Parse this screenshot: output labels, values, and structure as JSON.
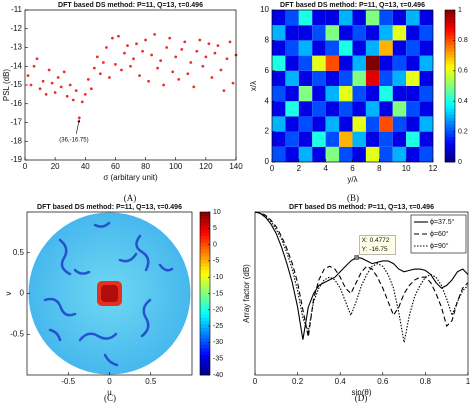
{
  "chart_data": [
    {
      "type": "scatter",
      "title": "DFT based DS method: P=11, Q=13, τ=0.496",
      "x_label": "σ (arbitary unit)",
      "y_label": "PSL (dB)",
      "color": "#e8312b",
      "x": [
        2,
        4,
        6,
        8,
        10,
        12,
        14,
        16,
        18,
        20,
        22,
        24,
        26,
        28,
        30,
        32,
        34,
        36,
        38,
        40,
        42,
        44,
        46,
        48,
        50,
        52,
        54,
        56,
        58,
        60,
        62,
        64,
        66,
        68,
        70,
        72,
        74,
        76,
        78,
        80,
        82,
        84,
        86,
        88,
        90,
        92,
        94,
        96,
        98,
        100,
        102,
        104,
        106,
        108,
        110,
        112,
        114,
        116,
        118,
        120,
        122,
        124,
        126,
        128,
        130,
        132,
        134,
        136,
        138,
        140
      ],
      "values": [
        -14.5,
        -15,
        -14,
        -13.6,
        -15.2,
        -14.8,
        -15.5,
        -14.2,
        -14.9,
        -15.4,
        -14.6,
        -15.1,
        -14.3,
        -15.6,
        -15.0,
        -15.8,
        -15.3,
        -16.75,
        -15.9,
        -15.5,
        -14.7,
        -15.2,
        -14.1,
        -13.5,
        -14.4,
        -13.8,
        -13.0,
        -14.6,
        -12.5,
        -13.9,
        -12.4,
        -14.2,
        -13.3,
        -12.9,
        -14.0,
        -13.6,
        -12.8,
        -14.5,
        -13.2,
        -12.6,
        -14.8,
        -13.4,
        -12.3,
        -14.1,
        -13.7,
        -15.0,
        -13.0,
        -12.5,
        -14.3,
        -13.5,
        -14.7,
        -13.1,
        -12.7,
        -14.4,
        -13.8,
        -15.1,
        -13.2,
        -12.6,
        -14.0,
        -13.5,
        -12.8,
        -14.6,
        -13.3,
        -12.9,
        -14.2,
        -15.3,
        -13.6,
        -12.7,
        -14.9,
        -13.4
      ],
      "xlim": [
        0,
        140
      ],
      "xticks": [
        0,
        20,
        40,
        60,
        80,
        100,
        120,
        140
      ],
      "ylim": [
        -19,
        -11
      ],
      "yticks": [
        -11,
        -12,
        -13,
        -14,
        -15,
        -16,
        -17,
        -18,
        -19
      ],
      "annotation": {
        "x": 36,
        "y": -16.75,
        "text": "(36,-16.75)"
      }
    },
    {
      "type": "heatmap",
      "title": "DFT based DS method: P=11, Q=13, τ=0.496",
      "x_label": "y/λ",
      "y_label": "x/λ",
      "values": [
        [
          0.2,
          0.1,
          0.3,
          0.1,
          0.5,
          0.2,
          0.1,
          0.6,
          0.2,
          0.3,
          0.1,
          0.2
        ],
        [
          0.1,
          0.2,
          0.1,
          0.4,
          0.2,
          0.7,
          0.3,
          0.1,
          0.2,
          0.1,
          0.4,
          0.1
        ],
        [
          0.3,
          0.1,
          0.2,
          0.1,
          0.3,
          0.1,
          0.6,
          0.2,
          0.8,
          0.2,
          0.1,
          0.3
        ],
        [
          0.1,
          0.4,
          0.1,
          0.2,
          0.1,
          0.2,
          0.1,
          0.3,
          0.1,
          0.5,
          0.2,
          0.1
        ],
        [
          0.2,
          0.1,
          0.5,
          0.1,
          0.3,
          0.6,
          0.2,
          0.1,
          0.4,
          0.1,
          0.1,
          0.2
        ],
        [
          0.1,
          0.3,
          0.1,
          0.2,
          0.1,
          0.2,
          0.5,
          0.9,
          0.2,
          0.3,
          0.6,
          0.1
        ],
        [
          0.4,
          0.1,
          0.2,
          0.6,
          0.8,
          0.1,
          0.3,
          1,
          0.1,
          0.2,
          0.1,
          0.3
        ],
        [
          0.1,
          0.2,
          0.3,
          0.1,
          0.2,
          0.4,
          0.1,
          0.3,
          0.7,
          0.1,
          0.2,
          0.1
        ],
        [
          0.3,
          0.1,
          0.1,
          0.2,
          0.5,
          0.1,
          0.2,
          0.1,
          0.3,
          0.6,
          0.1,
          0.2
        ],
        [
          0.1,
          0.2,
          0.4,
          0.1,
          0.1,
          0.3,
          0.1,
          0.5,
          0.2,
          0.1,
          0.3,
          0.1
        ]
      ],
      "xlim": [
        0,
        12
      ],
      "xticks": [
        0,
        2,
        4,
        6,
        8,
        10,
        12
      ],
      "ylim": [
        0,
        10
      ],
      "yticks": [
        0,
        2,
        4,
        6,
        8,
        10
      ],
      "clim": [
        0,
        1
      ],
      "cticks": [
        0,
        0.2,
        0.4,
        0.6,
        0.8,
        1
      ]
    },
    {
      "type": "map",
      "title": "DFT based DS method: P=11, Q=13, τ=0.496",
      "x_label": "u",
      "y_label": "v",
      "xlim": [
        -1,
        1
      ],
      "xticks": [
        -0.5,
        0,
        0.5
      ],
      "ylim": [
        -1,
        1
      ],
      "yticks": [
        -0.5,
        0,
        0.5
      ],
      "clim": [
        -40,
        10
      ],
      "cticks": [
        10,
        5,
        0,
        -5,
        -10,
        -15,
        -20,
        -25,
        -30,
        -35,
        -40
      ]
    },
    {
      "type": "line",
      "title": "DFT based DS method: P=11, Q=13, τ=0.496",
      "x_label": "sin(θ)",
      "y_label": "Array factor (dB)",
      "x": [
        0,
        0.025,
        0.05,
        0.075,
        0.1,
        0.125,
        0.15,
        0.175,
        0.2,
        0.225,
        0.25,
        0.275,
        0.3,
        0.325,
        0.35,
        0.375,
        0.4,
        0.425,
        0.45,
        0.475,
        0.5,
        0.525,
        0.55,
        0.575,
        0.6,
        0.625,
        0.65,
        0.675,
        0.7,
        0.725,
        0.75,
        0.775,
        0.8,
        0.825,
        0.85,
        0.875,
        0.9,
        0.925,
        0.95,
        0.975,
        1
      ],
      "series": [
        {
          "name": "ϕ=37.5°",
          "color": "#000000",
          "dash": "none",
          "values": [
            0,
            -0.5,
            -2,
            -4.5,
            -8,
            -13,
            -19,
            -26,
            -35,
            -47,
            -35,
            -30,
            -27,
            -26,
            -25,
            -24,
            -22,
            -20,
            -18,
            -16.75,
            -17,
            -18,
            -19,
            -18.5,
            -18,
            -18,
            -19,
            -21,
            -22,
            -21.5,
            -21,
            -21,
            -21.5,
            -23,
            -26,
            -28,
            -27,
            -25,
            -22,
            -21,
            -23
          ]
        },
        {
          "name": "ϕ=60°",
          "color": "#000000",
          "dash": "5,3",
          "values": [
            0,
            -0.3,
            -1.2,
            -3,
            -5.5,
            -9,
            -13.5,
            -19,
            -26,
            -36,
            -46,
            -32,
            -25,
            -21,
            -20,
            -21,
            -24,
            -28,
            -30,
            -26,
            -22,
            -20,
            -21,
            -24,
            -28,
            -33,
            -38,
            -35,
            -30,
            -27,
            -25,
            -24,
            -24,
            -26,
            -30,
            -35,
            -42,
            -40,
            -33,
            -28,
            -26
          ]
        },
        {
          "name": "ϕ=90°",
          "color": "#000000",
          "dash": "1.5,1.5",
          "values": [
            0,
            -0.5,
            -1.5,
            -3.5,
            -6.5,
            -10,
            -15,
            -21,
            -29,
            -39,
            -44,
            -33,
            -28,
            -25,
            -24,
            -25,
            -28,
            -33,
            -38,
            -33,
            -27,
            -23,
            -20,
            -19,
            -20,
            -23,
            -28,
            -37,
            -48,
            -38,
            -31,
            -27,
            -24,
            -23,
            -24,
            -27,
            -32,
            -38,
            -33,
            -29,
            -27
          ]
        }
      ],
      "xlim": [
        0,
        1
      ],
      "xticks": [
        0,
        0.2,
        0.4,
        0.6,
        0.8,
        1
      ],
      "ylim": [
        -60,
        0
      ],
      "legend": "upper right",
      "annotation": {
        "x": 0.4772,
        "y": -16.75,
        "lines": [
          "X: 0.4772",
          "Y: -16.75"
        ]
      }
    }
  ],
  "captions": [
    "(A)",
    "(B)",
    "(C)",
    "(D)"
  ]
}
